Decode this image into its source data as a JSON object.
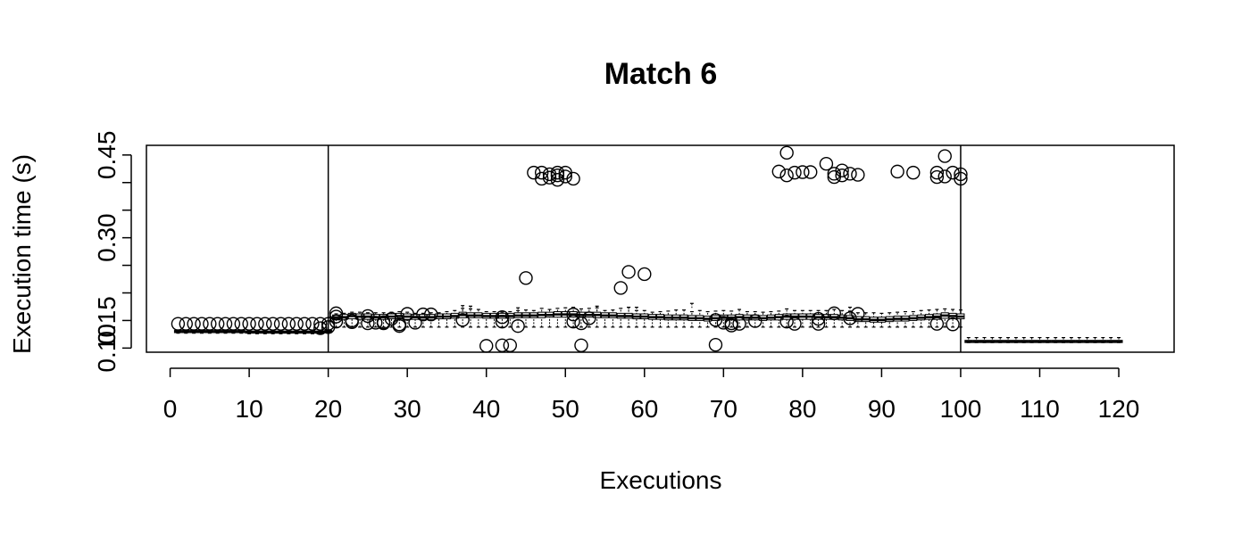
{
  "chart_data": {
    "type": "scatter",
    "title": "Match 6",
    "xlabel": "Executions",
    "ylabel": "Execution time (s)",
    "xlim": [
      -3,
      127
    ],
    "ylim": [
      0.0925,
      0.4675
    ],
    "x_ticks": [
      0,
      10,
      20,
      30,
      40,
      50,
      60,
      70,
      80,
      90,
      100,
      110,
      120
    ],
    "x_tick_labels": [
      "0",
      "10",
      "20",
      "30",
      "40",
      "50",
      "60",
      "70",
      "80",
      "90",
      "100",
      "110",
      "120"
    ],
    "y_ticks": [
      0.1,
      0.15,
      0.2,
      0.25,
      0.3,
      0.35,
      0.4,
      0.45
    ],
    "y_tick_labels": [
      "0.10",
      "0.15",
      "",
      "",
      "0.30",
      "",
      "",
      "0.45"
    ],
    "vertical_lines": [
      20,
      100
    ],
    "box_series": {
      "x": [
        1,
        2,
        3,
        4,
        5,
        6,
        7,
        8,
        9,
        10,
        11,
        12,
        13,
        14,
        15,
        16,
        17,
        18,
        19,
        20,
        21,
        22,
        23,
        24,
        25,
        26,
        27,
        28,
        29,
        30,
        31,
        32,
        33,
        34,
        35,
        36,
        37,
        38,
        39,
        40,
        41,
        42,
        43,
        44,
        45,
        46,
        47,
        48,
        49,
        50,
        51,
        52,
        53,
        54,
        55,
        56,
        57,
        58,
        59,
        60,
        61,
        62,
        63,
        64,
        65,
        66,
        67,
        68,
        69,
        70,
        71,
        72,
        73,
        74,
        75,
        76,
        77,
        78,
        79,
        80,
        81,
        82,
        83,
        84,
        85,
        86,
        87,
        88,
        89,
        90,
        91,
        92,
        93,
        94,
        95,
        96,
        97,
        98,
        99,
        100,
        101,
        102,
        103,
        104,
        105,
        106,
        107,
        108,
        109,
        110,
        111,
        112,
        113,
        114,
        115,
        116,
        117,
        118,
        119,
        120
      ],
      "median": [
        0.13,
        0.13,
        0.13,
        0.13,
        0.13,
        0.13,
        0.13,
        0.13,
        0.13,
        0.129,
        0.129,
        0.129,
        0.129,
        0.129,
        0.129,
        0.129,
        0.129,
        0.129,
        0.129,
        0.13,
        0.155,
        0.156,
        0.158,
        0.157,
        0.157,
        0.156,
        0.156,
        0.157,
        0.158,
        0.157,
        0.156,
        0.156,
        0.156,
        0.157,
        0.157,
        0.158,
        0.16,
        0.159,
        0.159,
        0.158,
        0.158,
        0.158,
        0.158,
        0.159,
        0.159,
        0.159,
        0.16,
        0.16,
        0.161,
        0.161,
        0.161,
        0.16,
        0.16,
        0.16,
        0.159,
        0.159,
        0.158,
        0.158,
        0.157,
        0.157,
        0.156,
        0.156,
        0.155,
        0.155,
        0.155,
        0.154,
        0.154,
        0.153,
        0.154,
        0.155,
        0.155,
        0.156,
        0.155,
        0.155,
        0.154,
        0.155,
        0.156,
        0.157,
        0.157,
        0.157,
        0.157,
        0.156,
        0.156,
        0.156,
        0.155,
        0.154,
        0.152,
        0.152,
        0.151,
        0.151,
        0.152,
        0.153,
        0.153,
        0.154,
        0.155,
        0.156,
        0.157,
        0.159,
        0.158,
        0.157,
        0.112,
        0.112,
        0.112,
        0.112,
        0.112,
        0.112,
        0.112,
        0.112,
        0.112,
        0.112,
        0.112,
        0.112,
        0.112,
        0.112,
        0.112,
        0.112,
        0.112,
        0.112,
        0.112,
        0.112
      ],
      "q1": [
        0.128,
        0.128,
        0.128,
        0.128,
        0.128,
        0.128,
        0.128,
        0.128,
        0.128,
        0.127,
        0.127,
        0.127,
        0.127,
        0.127,
        0.127,
        0.127,
        0.127,
        0.127,
        0.127,
        0.128,
        0.151,
        0.152,
        0.153,
        0.152,
        0.152,
        0.152,
        0.152,
        0.153,
        0.153,
        0.152,
        0.152,
        0.152,
        0.152,
        0.153,
        0.153,
        0.154,
        0.155,
        0.155,
        0.155,
        0.154,
        0.154,
        0.154,
        0.154,
        0.155,
        0.155,
        0.155,
        0.155,
        0.156,
        0.156,
        0.156,
        0.156,
        0.156,
        0.156,
        0.155,
        0.155,
        0.155,
        0.154,
        0.154,
        0.153,
        0.153,
        0.152,
        0.152,
        0.151,
        0.151,
        0.151,
        0.15,
        0.15,
        0.149,
        0.15,
        0.151,
        0.151,
        0.151,
        0.151,
        0.151,
        0.15,
        0.151,
        0.151,
        0.152,
        0.152,
        0.152,
        0.152,
        0.152,
        0.152,
        0.152,
        0.151,
        0.15,
        0.148,
        0.148,
        0.147,
        0.147,
        0.148,
        0.149,
        0.149,
        0.15,
        0.151,
        0.152,
        0.152,
        0.154,
        0.153,
        0.153,
        0.11,
        0.11,
        0.11,
        0.11,
        0.11,
        0.11,
        0.11,
        0.11,
        0.11,
        0.11,
        0.11,
        0.11,
        0.11,
        0.11,
        0.11,
        0.11,
        0.11,
        0.11,
        0.11,
        0.11
      ],
      "q3": [
        0.132,
        0.132,
        0.132,
        0.132,
        0.132,
        0.132,
        0.132,
        0.132,
        0.132,
        0.131,
        0.131,
        0.131,
        0.131,
        0.131,
        0.131,
        0.131,
        0.131,
        0.131,
        0.131,
        0.132,
        0.16,
        0.161,
        0.163,
        0.162,
        0.162,
        0.161,
        0.161,
        0.162,
        0.163,
        0.162,
        0.161,
        0.161,
        0.161,
        0.162,
        0.162,
        0.163,
        0.165,
        0.164,
        0.164,
        0.163,
        0.163,
        0.163,
        0.163,
        0.164,
        0.164,
        0.164,
        0.165,
        0.165,
        0.166,
        0.166,
        0.166,
        0.165,
        0.165,
        0.165,
        0.164,
        0.164,
        0.163,
        0.163,
        0.162,
        0.162,
        0.161,
        0.161,
        0.16,
        0.16,
        0.16,
        0.159,
        0.159,
        0.158,
        0.159,
        0.16,
        0.16,
        0.161,
        0.16,
        0.16,
        0.159,
        0.16,
        0.161,
        0.162,
        0.162,
        0.162,
        0.162,
        0.161,
        0.161,
        0.161,
        0.16,
        0.159,
        0.157,
        0.157,
        0.156,
        0.156,
        0.157,
        0.158,
        0.158,
        0.159,
        0.16,
        0.161,
        0.162,
        0.164,
        0.163,
        0.162,
        0.114,
        0.114,
        0.114,
        0.114,
        0.114,
        0.114,
        0.114,
        0.114,
        0.114,
        0.114,
        0.114,
        0.114,
        0.114,
        0.114,
        0.114,
        0.114,
        0.114,
        0.114,
        0.114,
        0.114
      ],
      "whisker_low": [
        0.127,
        0.127,
        0.127,
        0.127,
        0.127,
        0.127,
        0.127,
        0.127,
        0.127,
        0.126,
        0.126,
        0.126,
        0.126,
        0.126,
        0.126,
        0.126,
        0.126,
        0.126,
        0.126,
        0.127,
        0.138,
        0.138,
        0.138,
        0.138,
        0.138,
        0.138,
        0.138,
        0.138,
        0.138,
        0.138,
        0.138,
        0.138,
        0.138,
        0.138,
        0.138,
        0.138,
        0.138,
        0.138,
        0.138,
        0.138,
        0.138,
        0.138,
        0.138,
        0.138,
        0.138,
        0.138,
        0.138,
        0.138,
        0.138,
        0.138,
        0.138,
        0.138,
        0.138,
        0.138,
        0.138,
        0.138,
        0.138,
        0.138,
        0.138,
        0.138,
        0.138,
        0.138,
        0.138,
        0.138,
        0.138,
        0.138,
        0.138,
        0.138,
        0.138,
        0.138,
        0.138,
        0.138,
        0.138,
        0.138,
        0.138,
        0.138,
        0.138,
        0.138,
        0.138,
        0.138,
        0.138,
        0.138,
        0.138,
        0.138,
        0.138,
        0.138,
        0.138,
        0.138,
        0.138,
        0.138,
        0.138,
        0.138,
        0.138,
        0.138,
        0.138,
        0.138,
        0.138,
        0.138,
        0.138,
        0.138,
        0.11,
        0.11,
        0.11,
        0.11,
        0.11,
        0.11,
        0.11,
        0.11,
        0.11,
        0.11,
        0.11,
        0.11,
        0.11,
        0.11,
        0.11,
        0.11,
        0.11,
        0.11,
        0.11,
        0.11
      ],
      "whisker_high": [
        0.133,
        0.133,
        0.133,
        0.133,
        0.133,
        0.133,
        0.133,
        0.133,
        0.133,
        0.132,
        0.132,
        0.132,
        0.132,
        0.132,
        0.132,
        0.132,
        0.132,
        0.132,
        0.132,
        0.133,
        0.162,
        0.163,
        0.165,
        0.165,
        0.164,
        0.164,
        0.164,
        0.165,
        0.166,
        0.165,
        0.163,
        0.163,
        0.164,
        0.164,
        0.166,
        0.168,
        0.172,
        0.171,
        0.17,
        0.166,
        0.166,
        0.165,
        0.166,
        0.168,
        0.169,
        0.168,
        0.172,
        0.17,
        0.172,
        0.173,
        0.174,
        0.171,
        0.172,
        0.173,
        0.168,
        0.169,
        0.172,
        0.174,
        0.168,
        0.168,
        0.165,
        0.166,
        0.167,
        0.169,
        0.169,
        0.166,
        0.168,
        0.166,
        0.167,
        0.168,
        0.167,
        0.17,
        0.166,
        0.166,
        0.165,
        0.166,
        0.167,
        0.171,
        0.168,
        0.168,
        0.168,
        0.168,
        0.168,
        0.17,
        0.168,
        0.167,
        0.164,
        0.164,
        0.164,
        0.163,
        0.164,
        0.165,
        0.166,
        0.166,
        0.168,
        0.169,
        0.17,
        0.171,
        0.17,
        0.169,
        0.119,
        0.119,
        0.119,
        0.119,
        0.119,
        0.119,
        0.119,
        0.119,
        0.119,
        0.119,
        0.119,
        0.119,
        0.119,
        0.119,
        0.119,
        0.119,
        0.119,
        0.119,
        0.119,
        0.119
      ]
    },
    "extra_whisker_caps": [
      {
        "x": 37,
        "y": 0.177
      },
      {
        "x": 38,
        "y": 0.176
      },
      {
        "x": 44,
        "y": 0.173
      },
      {
        "x": 54,
        "y": 0.176
      },
      {
        "x": 58,
        "y": 0.174
      },
      {
        "x": 59,
        "y": 0.174
      },
      {
        "x": 66,
        "y": 0.181
      },
      {
        "x": 86,
        "y": 0.174
      }
    ],
    "outliers": {
      "x": [
        1,
        2,
        3,
        4,
        5,
        6,
        7,
        8,
        9,
        10,
        11,
        12,
        13,
        14,
        15,
        16,
        17,
        18,
        19,
        19,
        20,
        20,
        21,
        21,
        21,
        23,
        23,
        25,
        25,
        26,
        27,
        27,
        28,
        29,
        29,
        30,
        31,
        32,
        33,
        37,
        40,
        42,
        42,
        42,
        43,
        44,
        45,
        46,
        47,
        47,
        48,
        48,
        49,
        49,
        49,
        50,
        50,
        51,
        51,
        51,
        52,
        52,
        53,
        57,
        58,
        60,
        69,
        69,
        70,
        71,
        71,
        72,
        74,
        77,
        78,
        78,
        78,
        79,
        79,
        80,
        81,
        82,
        82,
        83,
        84,
        84,
        84,
        85,
        85,
        86,
        86,
        87,
        87,
        92,
        94,
        97,
        97,
        97,
        98,
        98,
        99,
        99,
        100,
        100
      ],
      "y": [
        0.144,
        0.144,
        0.144,
        0.144,
        0.144,
        0.144,
        0.144,
        0.144,
        0.144,
        0.144,
        0.144,
        0.144,
        0.144,
        0.144,
        0.144,
        0.144,
        0.144,
        0.144,
        0.144,
        0.136,
        0.144,
        0.138,
        0.163,
        0.157,
        0.148,
        0.15,
        0.147,
        0.158,
        0.145,
        0.146,
        0.147,
        0.145,
        0.153,
        0.143,
        0.14,
        0.162,
        0.146,
        0.161,
        0.161,
        0.151,
        0.104,
        0.156,
        0.148,
        0.105,
        0.105,
        0.14,
        0.227,
        0.418,
        0.418,
        0.407,
        0.415,
        0.409,
        0.418,
        0.413,
        0.405,
        0.418,
        0.411,
        0.407,
        0.161,
        0.148,
        0.105,
        0.145,
        0.154,
        0.209,
        0.238,
        0.234,
        0.151,
        0.106,
        0.146,
        0.145,
        0.141,
        0.144,
        0.149,
        0.42,
        0.454,
        0.148,
        0.413,
        0.418,
        0.144,
        0.419,
        0.419,
        0.153,
        0.144,
        0.434,
        0.416,
        0.41,
        0.163,
        0.422,
        0.413,
        0.416,
        0.154,
        0.414,
        0.162,
        0.42,
        0.418,
        0.418,
        0.41,
        0.144,
        0.448,
        0.411,
        0.418,
        0.143,
        0.415,
        0.407
      ]
    }
  }
}
